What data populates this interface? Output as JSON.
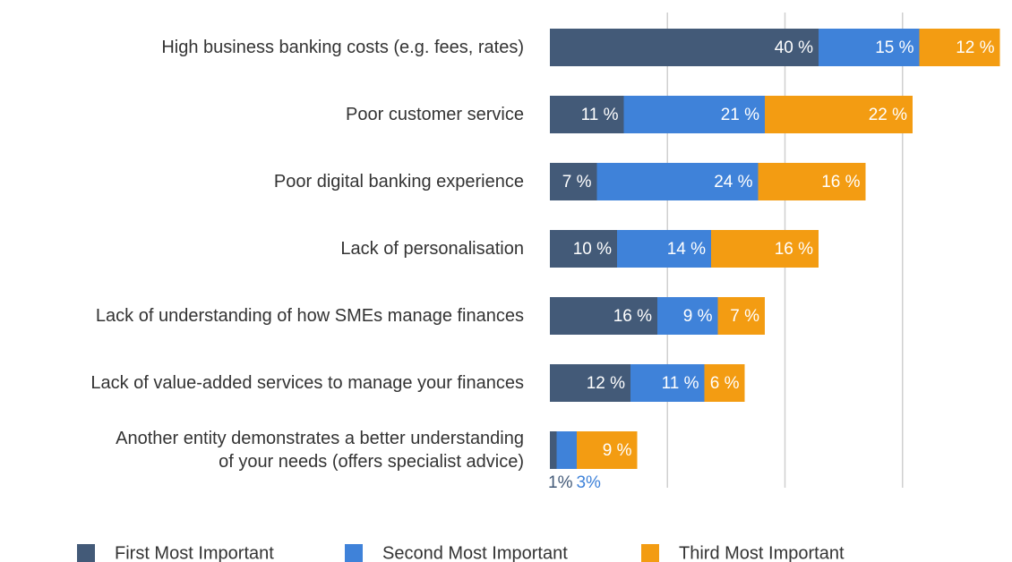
{
  "chart_data": {
    "type": "stacked-barh",
    "categories": [
      "High business banking costs (e.g. fees, rates)",
      "Poor customer service",
      "Poor digital banking experience",
      "Lack of personalisation",
      "Lack of understanding of how SMEs manage finances",
      "Lack of value-added services to manage your finances",
      "Another entity demonstrates a better understanding\nof your needs (offers specialist advice)"
    ],
    "series": [
      {
        "name": "First Most Important",
        "color": "#435a78",
        "values": [
          40,
          11,
          7,
          10,
          16,
          12,
          1
        ],
        "value_labels": [
          "40 %",
          "11 %",
          "7 %",
          "10 %",
          "16 %",
          "12 %",
          "1%"
        ]
      },
      {
        "name": "Second Most Important",
        "color": "#3f82d9",
        "values": [
          15,
          21,
          24,
          14,
          9,
          11,
          3
        ],
        "value_labels": [
          "15 %",
          "21 %",
          "24 %",
          "14 %",
          "9 %",
          "11 %",
          "3%"
        ]
      },
      {
        "name": "Third Most Important",
        "color": "#f39c12",
        "values": [
          12,
          22,
          16,
          16,
          7,
          6,
          9
        ],
        "value_labels": [
          "12 %",
          "22 %",
          "16 %",
          "16 %",
          "7 %",
          "6 %",
          "9 %"
        ]
      }
    ],
    "xlim": [
      0,
      68
    ],
    "xgrid": [
      17.5,
      35,
      52.5
    ],
    "legend": "bottom"
  }
}
